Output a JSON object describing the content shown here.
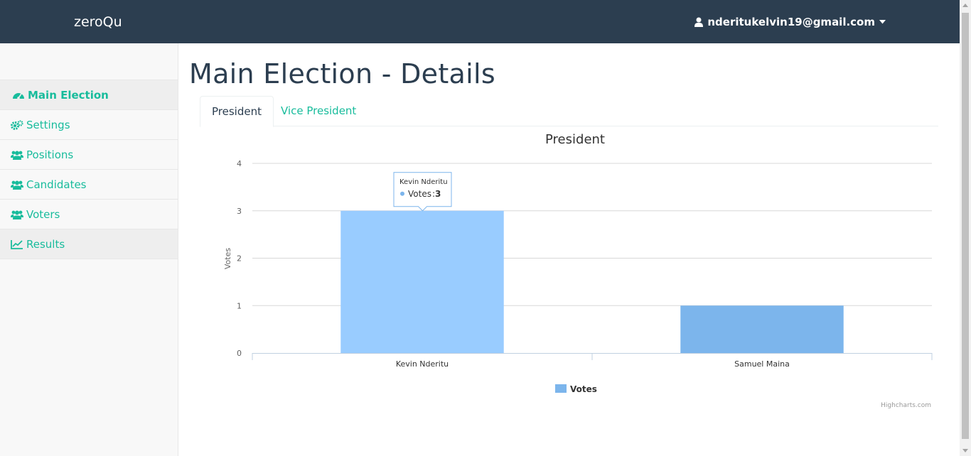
{
  "navbar": {
    "brand": "zeroQu",
    "user_email": "nderitukelvin19@gmail.com",
    "user_icon": "user-icon",
    "caret_icon": "caret-down-icon"
  },
  "sidebar": {
    "items": [
      {
        "label": "Main Election",
        "icon": "dashboard-icon",
        "state": "active"
      },
      {
        "label": "Settings",
        "icon": "gears-icon",
        "state": "normal"
      },
      {
        "label": "Positions",
        "icon": "users-icon",
        "state": "normal"
      },
      {
        "label": "Candidates",
        "icon": "users-icon",
        "state": "normal"
      },
      {
        "label": "Voters",
        "icon": "users-icon",
        "state": "normal"
      },
      {
        "label": "Results",
        "icon": "line-chart-icon",
        "state": "shaded"
      }
    ]
  },
  "main": {
    "title": "Main Election - Details",
    "tabs": [
      {
        "label": "President",
        "active": true
      },
      {
        "label": "Vice President",
        "active": false
      }
    ]
  },
  "chart_data": {
    "type": "bar",
    "title": "President",
    "ylabel": "Votes",
    "xlabel": "",
    "categories": [
      "Kevin Nderitu",
      "Samuel Maina"
    ],
    "series": [
      {
        "name": "Votes",
        "values": [
          3,
          1
        ]
      }
    ],
    "ylim": [
      0,
      4
    ],
    "yticks": [
      0,
      1,
      2,
      3,
      4
    ],
    "grid": true,
    "legend": "bottom-center",
    "bar_colors": [
      "#99ccff",
      "#7cb5ec"
    ],
    "tooltip": {
      "category": "Kevin Nderitu",
      "series": "Votes",
      "value": 3
    },
    "credits": "Highcharts.com"
  }
}
